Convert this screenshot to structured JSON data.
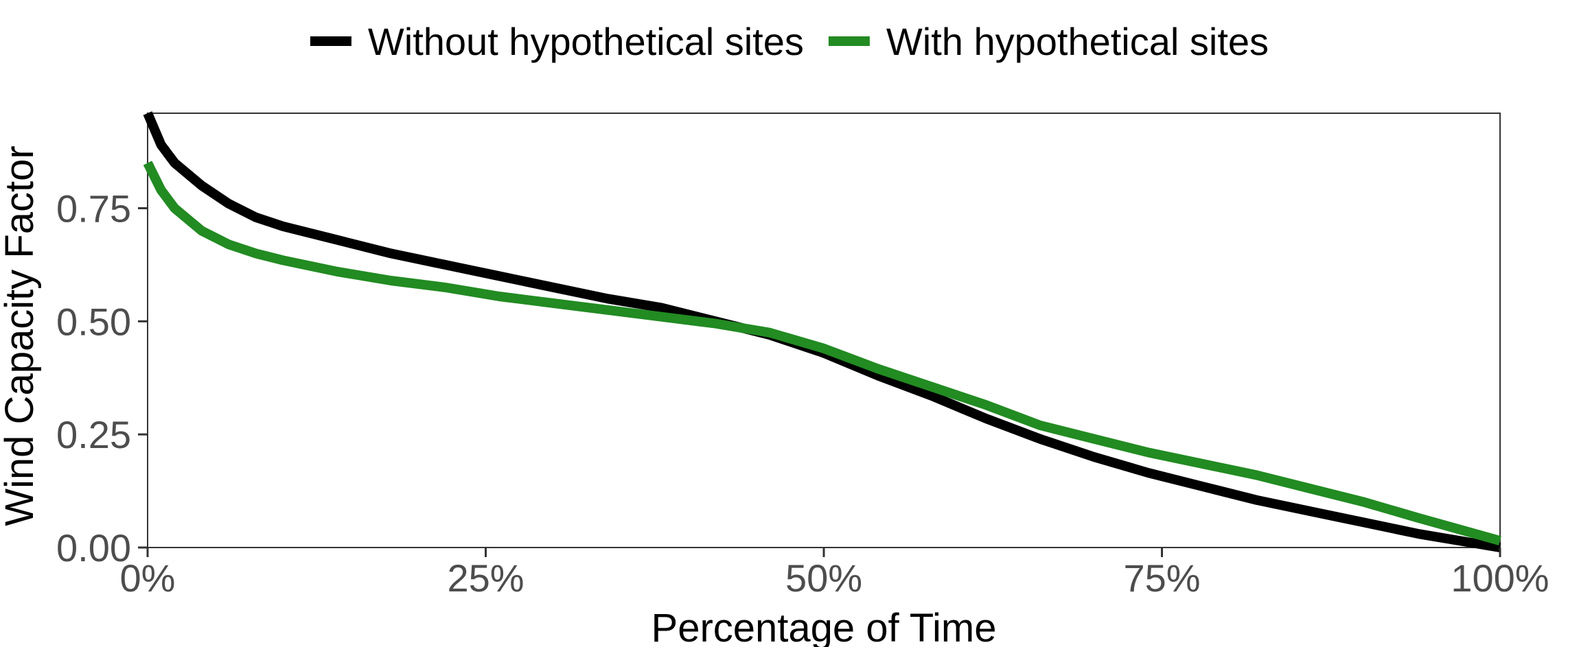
{
  "chart_data": {
    "type": "line",
    "xlabel": "Percentage of Time",
    "ylabel": "Wind Capacity Factor",
    "xlim": [
      0,
      100
    ],
    "ylim": [
      0,
      0.96
    ],
    "x_ticks": [
      {
        "value": 0,
        "label": "0%"
      },
      {
        "value": 25,
        "label": "25%"
      },
      {
        "value": 50,
        "label": "50%"
      },
      {
        "value": 75,
        "label": "75%"
      },
      {
        "value": 100,
        "label": "100%"
      }
    ],
    "y_ticks": [
      {
        "value": 0,
        "label": "0.00"
      },
      {
        "value": 0.25,
        "label": "0.25"
      },
      {
        "value": 0.5,
        "label": "0.50"
      },
      {
        "value": 0.75,
        "label": "0.75"
      }
    ],
    "grid": false,
    "legend_position": "top",
    "series": [
      {
        "name": "Without hypothetical sites",
        "color": "#000000",
        "x": [
          0,
          1,
          2,
          4,
          6,
          8,
          10,
          14,
          18,
          22,
          26,
          30,
          34,
          38,
          42,
          46,
          50,
          54,
          58,
          62,
          66,
          70,
          74,
          78,
          82,
          86,
          90,
          94,
          97,
          100
        ],
        "y": [
          0.96,
          0.89,
          0.85,
          0.8,
          0.76,
          0.73,
          0.71,
          0.68,
          0.65,
          0.625,
          0.6,
          0.575,
          0.55,
          0.53,
          0.5,
          0.47,
          0.43,
          0.38,
          0.335,
          0.285,
          0.24,
          0.2,
          0.165,
          0.135,
          0.105,
          0.08,
          0.055,
          0.03,
          0.015,
          0.0
        ]
      },
      {
        "name": "With hypothetical sites",
        "color": "#228b22",
        "x": [
          0,
          1,
          2,
          4,
          6,
          8,
          10,
          14,
          18,
          22,
          26,
          30,
          34,
          38,
          42,
          46,
          50,
          54,
          58,
          62,
          66,
          70,
          74,
          78,
          82,
          86,
          90,
          94,
          97,
          100
        ],
        "y": [
          0.85,
          0.79,
          0.75,
          0.7,
          0.67,
          0.65,
          0.635,
          0.61,
          0.59,
          0.575,
          0.555,
          0.54,
          0.525,
          0.51,
          0.495,
          0.475,
          0.44,
          0.395,
          0.355,
          0.315,
          0.27,
          0.24,
          0.21,
          0.185,
          0.16,
          0.13,
          0.1,
          0.065,
          0.04,
          0.015
        ]
      }
    ]
  }
}
